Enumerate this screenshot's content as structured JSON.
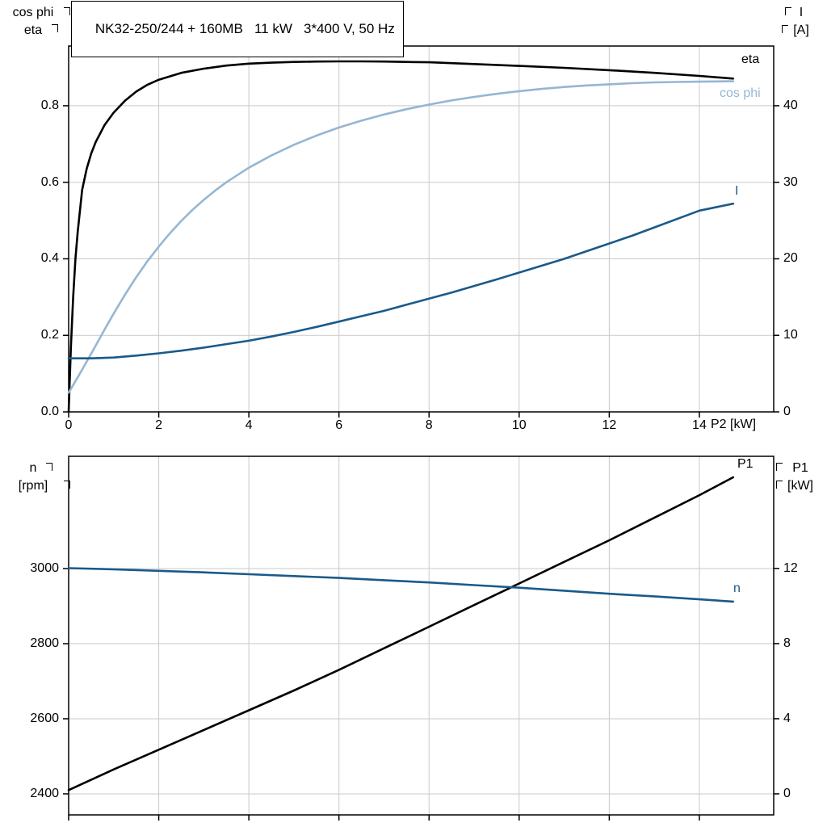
{
  "colors": {
    "grid": "#c9c9c9",
    "axis": "#000000",
    "curve_black": "#000000",
    "curve_dark_blue": "#1a5a8a",
    "curve_light_blue": "#96b6d3"
  },
  "chart_data": [
    {
      "type": "line",
      "title": "NK32-250/244 + 160MB   11 kW   3*400 V, 50 Hz",
      "title_parts": {
        "pump_model": "NK32-250/244 + 160MB",
        "rated_power": "11 kW",
        "supply": "3*400 V, 50 Hz"
      },
      "x_axis_label": "P2 [kW]",
      "xlim": [
        0,
        15.65
      ],
      "x_ticks": [
        0,
        2,
        4,
        6,
        8,
        10,
        12,
        14
      ],
      "x_tick_labels": [
        "0",
        "2",
        "4",
        "6",
        "8",
        "10",
        "12",
        "14"
      ],
      "show_x_tick_labels": true,
      "grid": true,
      "left_axis": {
        "title_lines": [
          "cos phi",
          "eta"
        ],
        "ticks": [
          0.0,
          0.2,
          0.4,
          0.6,
          0.8
        ],
        "tick_labels": [
          "0.0",
          "0.2",
          "0.4",
          "0.6",
          "0.8"
        ],
        "lim": [
          0,
          0.956
        ]
      },
      "right_axis": {
        "title_lines": [
          "I",
          "[A]"
        ],
        "ticks": [
          0,
          10,
          20,
          30,
          40
        ],
        "tick_labels": [
          "0",
          "10",
          "20",
          "30",
          "40"
        ],
        "lim": [
          0,
          47.8
        ]
      },
      "series": [
        {
          "name": "eta",
          "axis": "left",
          "color": "#000000",
          "points": [
            [
              0,
              0
            ],
            [
              0.05,
              0.17
            ],
            [
              0.1,
              0.3
            ],
            [
              0.15,
              0.4
            ],
            [
              0.2,
              0.47
            ],
            [
              0.3,
              0.58
            ],
            [
              0.4,
              0.635
            ],
            [
              0.5,
              0.675
            ],
            [
              0.6,
              0.705
            ],
            [
              0.8,
              0.75
            ],
            [
              1,
              0.782
            ],
            [
              1.25,
              0.813
            ],
            [
              1.5,
              0.837
            ],
            [
              1.75,
              0.855
            ],
            [
              2,
              0.868
            ],
            [
              2.5,
              0.886
            ],
            [
              3,
              0.897
            ],
            [
              3.5,
              0.905
            ],
            [
              4,
              0.91
            ],
            [
              4.5,
              0.9125
            ],
            [
              5,
              0.9145
            ],
            [
              5.5,
              0.9155
            ],
            [
              6,
              0.916
            ],
            [
              6.5,
              0.916
            ],
            [
              7,
              0.9155
            ],
            [
              7.5,
              0.9145
            ],
            [
              8,
              0.9135
            ],
            [
              9,
              0.909
            ],
            [
              10,
              0.904
            ],
            [
              11,
              0.899
            ],
            [
              12,
              0.893
            ],
            [
              13,
              0.886
            ],
            [
              14,
              0.878
            ],
            [
              14.75,
              0.871
            ]
          ]
        },
        {
          "name": "cos phi",
          "axis": "left",
          "color": "#96b6d3",
          "points": [
            [
              0,
              0.05
            ],
            [
              0.25,
              0.1
            ],
            [
              0.5,
              0.152
            ],
            [
              0.75,
              0.205
            ],
            [
              1,
              0.257
            ],
            [
              1.25,
              0.306
            ],
            [
              1.5,
              0.352
            ],
            [
              1.75,
              0.394
            ],
            [
              2,
              0.432
            ],
            [
              2.25,
              0.467
            ],
            [
              2.5,
              0.499
            ],
            [
              2.75,
              0.528
            ],
            [
              3,
              0.554
            ],
            [
              3.25,
              0.578
            ],
            [
              3.5,
              0.6
            ],
            [
              4,
              0.638
            ],
            [
              4.5,
              0.67
            ],
            [
              5,
              0.698
            ],
            [
              5.5,
              0.722
            ],
            [
              6,
              0.743
            ],
            [
              6.5,
              0.761
            ],
            [
              7,
              0.777
            ],
            [
              7.5,
              0.791
            ],
            [
              8,
              0.803
            ],
            [
              8.5,
              0.814
            ],
            [
              9,
              0.823
            ],
            [
              9.5,
              0.831
            ],
            [
              10,
              0.838
            ],
            [
              10.5,
              0.844
            ],
            [
              11,
              0.849
            ],
            [
              11.5,
              0.853
            ],
            [
              12,
              0.856
            ],
            [
              12.5,
              0.859
            ],
            [
              13,
              0.861
            ],
            [
              13.5,
              0.862
            ],
            [
              14,
              0.863
            ],
            [
              14.75,
              0.864
            ]
          ]
        },
        {
          "name": "I",
          "axis": "right",
          "color": "#1a5a8a",
          "points": [
            [
              0,
              7
            ],
            [
              0.5,
              7
            ],
            [
              1,
              7.1
            ],
            [
              1.5,
              7.35
            ],
            [
              2,
              7.65
            ],
            [
              2.5,
              8
            ],
            [
              3,
              8.4
            ],
            [
              3.5,
              8.85
            ],
            [
              4,
              9.3
            ],
            [
              4.5,
              9.85
            ],
            [
              5,
              10.45
            ],
            [
              5.5,
              11.1
            ],
            [
              6,
              11.8
            ],
            [
              6.5,
              12.5
            ],
            [
              7,
              13.2
            ],
            [
              7.5,
              14
            ],
            [
              8,
              14.8
            ],
            [
              8.5,
              15.6
            ],
            [
              9,
              16.45
            ],
            [
              9.5,
              17.3
            ],
            [
              10,
              18.2
            ],
            [
              10.5,
              19.1
            ],
            [
              11,
              20
            ],
            [
              11.5,
              21
            ],
            [
              12,
              22
            ],
            [
              12.5,
              23
            ],
            [
              13,
              24.1
            ],
            [
              13.5,
              25.2
            ],
            [
              14,
              26.3
            ],
            [
              14.75,
              27.2
            ]
          ]
        }
      ]
    },
    {
      "type": "line",
      "xlim": [
        0,
        15.65
      ],
      "x_ticks": [
        0,
        2,
        4,
        6,
        8,
        10,
        12,
        14
      ],
      "x_tick_labels": [
        "0",
        "2",
        "4",
        "6",
        "8",
        "10",
        "12",
        "14"
      ],
      "show_x_tick_labels": false,
      "grid": true,
      "left_axis": {
        "title_lines": [
          "n",
          "[rpm]"
        ],
        "ticks": [
          2400,
          2600,
          2800,
          3000
        ],
        "tick_labels": [
          "2400",
          "2600",
          "2800",
          "3000"
        ],
        "lim": [
          2344,
          3299
        ]
      },
      "right_axis": {
        "title_lines": [
          "P1",
          "[kW]"
        ],
        "ticks": [
          0,
          4,
          8,
          12
        ],
        "tick_labels": [
          "0",
          "4",
          "8",
          "12"
        ],
        "lim": [
          -1.12,
          17.97
        ]
      },
      "series": [
        {
          "name": "P1",
          "axis": "right",
          "color": "#000000",
          "points": [
            [
              0,
              0.2
            ],
            [
              1,
              1.3
            ],
            [
              2,
              2.35
            ],
            [
              3,
              3.4
            ],
            [
              4,
              4.45
            ],
            [
              5,
              5.5
            ],
            [
              6,
              6.6
            ],
            [
              7,
              7.75
            ],
            [
              8,
              8.9
            ],
            [
              9,
              10.05
            ],
            [
              10,
              11.2
            ],
            [
              11,
              12.35
            ],
            [
              12,
              13.5
            ],
            [
              13,
              14.7
            ],
            [
              14,
              15.9
            ],
            [
              14.75,
              16.85
            ]
          ]
        },
        {
          "name": "n",
          "axis": "left",
          "color": "#1a5a8a",
          "points": [
            [
              0,
              3001
            ],
            [
              1,
              2998
            ],
            [
              2,
              2994
            ],
            [
              3,
              2990
            ],
            [
              4,
              2985
            ],
            [
              5,
              2980
            ],
            [
              6,
              2975
            ],
            [
              7,
              2969
            ],
            [
              8,
              2963
            ],
            [
              9,
              2956
            ],
            [
              10,
              2949
            ],
            [
              11,
              2941
            ],
            [
              12,
              2933
            ],
            [
              13,
              2926
            ],
            [
              14,
              2918
            ],
            [
              14.75,
              2912
            ]
          ]
        }
      ]
    }
  ]
}
